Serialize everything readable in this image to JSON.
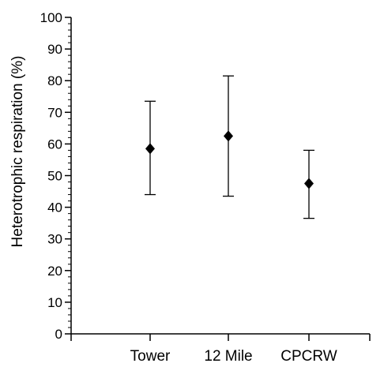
{
  "chart_data": {
    "type": "scatter",
    "title": "",
    "xlabel": "",
    "ylabel": "Heterotrophic respiration (%)",
    "ylim": [
      0,
      100
    ],
    "y_ticks": [
      "0",
      "10",
      "20",
      "30",
      "40",
      "50",
      "60",
      "70",
      "80",
      "90",
      "100"
    ],
    "y_minor_step": 2,
    "grid": false,
    "legend": "none",
    "categories": [
      "Tower",
      "12 Mile",
      "CPCRW"
    ],
    "series": [
      {
        "values": [
          58.5,
          62.5,
          47.5
        ],
        "lower": [
          44,
          43.5,
          36.5
        ],
        "upper": [
          73.5,
          81.5,
          58
        ]
      }
    ],
    "colors": {
      "marker": "#000000",
      "axis": "#000000"
    }
  }
}
